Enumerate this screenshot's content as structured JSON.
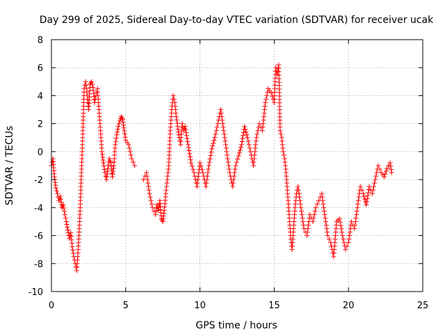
{
  "chart_data": {
    "type": "scatter",
    "title": "Day 299 of 2025, Sidereal Day-to-day VTEC variation (SDTVAR) for receiver ucak",
    "xlabel": "GPS time / hours",
    "ylabel": "SDTVAR / TECUs",
    "xlim": [
      0,
      25
    ],
    "ylim": [
      -10,
      8
    ],
    "x_ticks": [
      0,
      5,
      10,
      15,
      20,
      25
    ],
    "y_ticks": [
      -10,
      -8,
      -6,
      -4,
      -2,
      0,
      2,
      4,
      6,
      8
    ],
    "x_tick_labels": [
      "0",
      "5",
      "10",
      "15",
      "20",
      "25"
    ],
    "y_tick_labels": [
      "-10",
      "-8",
      "-6",
      "-4",
      "-2",
      "0",
      "2",
      "4",
      "6",
      "8"
    ],
    "grid": true,
    "marker": "plus",
    "color": "#ff0000",
    "series": [
      {
        "name": "SDTVAR",
        "x": [
          0.0,
          0.1,
          0.2,
          0.3,
          0.4,
          0.5,
          0.6,
          0.7,
          0.8,
          0.9,
          1.0,
          1.1,
          1.2,
          1.3,
          1.4,
          1.5,
          1.6,
          1.7,
          1.8,
          1.9,
          2.0,
          2.1,
          2.2,
          2.3,
          2.4,
          2.5,
          2.6,
          2.7,
          2.8,
          2.9,
          3.0,
          3.1,
          3.2,
          3.3,
          3.4,
          3.5,
          3.6,
          3.7,
          3.8,
          3.9,
          4.0,
          4.1,
          4.2,
          4.3,
          4.4,
          4.5,
          4.6,
          4.7,
          4.8,
          4.9,
          5.0,
          5.2,
          5.4,
          5.6,
          6.2,
          6.4,
          6.6,
          6.8,
          7.0,
          7.1,
          7.2,
          7.3,
          7.4,
          7.5,
          7.6,
          7.7,
          7.8,
          7.9,
          8.0,
          8.1,
          8.2,
          8.3,
          8.4,
          8.5,
          8.6,
          8.7,
          8.8,
          8.9,
          9.0,
          9.2,
          9.4,
          9.6,
          9.8,
          10.0,
          10.2,
          10.4,
          10.6,
          10.8,
          11.0,
          11.2,
          11.4,
          11.6,
          11.8,
          12.0,
          12.2,
          12.4,
          12.6,
          12.8,
          13.0,
          13.2,
          13.4,
          13.6,
          13.8,
          14.0,
          14.2,
          14.4,
          14.6,
          14.8,
          15.0,
          15.1,
          15.2,
          15.3,
          15.4,
          15.5,
          15.6,
          15.7,
          15.8,
          15.9,
          16.0,
          16.1,
          16.2,
          16.3,
          16.4,
          16.5,
          16.6,
          16.8,
          17.0,
          17.2,
          17.4,
          17.6,
          17.8,
          18.0,
          18.2,
          18.4,
          18.6,
          18.8,
          19.0,
          19.2,
          19.4,
          19.6,
          19.8,
          20.0,
          20.2,
          20.4,
          20.6,
          20.8,
          21.0,
          21.2,
          21.4,
          21.6,
          21.8,
          22.0,
          22.2,
          22.4,
          22.6,
          22.8,
          22.9
        ],
        "y": [
          -1.0,
          -0.5,
          -1.8,
          -2.6,
          -3.0,
          -3.5,
          -3.2,
          -4.0,
          -3.8,
          -4.5,
          -5.0,
          -5.6,
          -6.2,
          -5.8,
          -6.8,
          -7.5,
          -8.0,
          -8.5,
          -7.0,
          -5.0,
          -2.0,
          1.0,
          4.5,
          5.0,
          4.0,
          3.0,
          4.8,
          5.0,
          4.6,
          3.5,
          4.0,
          4.5,
          3.0,
          1.5,
          0.0,
          -0.8,
          -1.5,
          -2.0,
          -1.2,
          -0.5,
          -0.8,
          -1.8,
          -1.0,
          0.5,
          1.2,
          1.8,
          2.2,
          2.5,
          2.3,
          1.5,
          0.8,
          0.5,
          -0.5,
          -1.0,
          -2.0,
          -1.5,
          -3.0,
          -4.0,
          -4.5,
          -3.8,
          -4.2,
          -3.5,
          -4.8,
          -5.0,
          -4.2,
          -3.0,
          -2.0,
          -1.0,
          1.5,
          3.0,
          4.0,
          3.5,
          2.5,
          1.8,
          1.0,
          0.5,
          2.0,
          1.5,
          1.8,
          0.5,
          -0.8,
          -1.5,
          -2.5,
          -0.8,
          -1.5,
          -2.5,
          -1.0,
          0.2,
          1.0,
          2.0,
          3.0,
          1.5,
          0.0,
          -1.5,
          -2.5,
          -1.0,
          -0.3,
          0.5,
          1.8,
          1.0,
          0.0,
          -1.0,
          1.0,
          2.0,
          1.5,
          3.5,
          4.5,
          4.2,
          3.5,
          6.0,
          5.5,
          6.2,
          1.5,
          1.0,
          0.0,
          -0.5,
          -1.5,
          -3.0,
          -4.5,
          -6.0,
          -7.0,
          -5.5,
          -4.0,
          -3.0,
          -2.5,
          -4.0,
          -5.5,
          -6.0,
          -4.5,
          -5.0,
          -4.0,
          -3.5,
          -3.0,
          -4.5,
          -6.0,
          -6.5,
          -7.5,
          -5.0,
          -4.8,
          -6.0,
          -7.0,
          -6.5,
          -5.0,
          -5.5,
          -4.0,
          -2.5,
          -3.0,
          -3.8,
          -2.5,
          -3.0,
          -2.0,
          -1.0,
          -1.5,
          -1.8,
          -1.2,
          -0.8,
          -1.5
        ]
      }
    ]
  }
}
